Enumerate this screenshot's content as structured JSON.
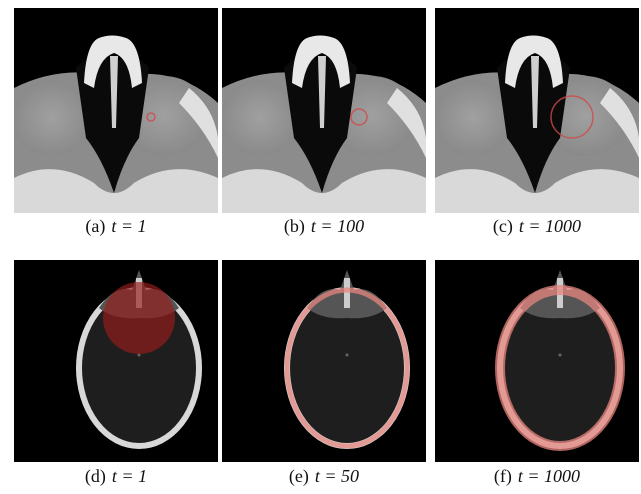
{
  "panels": [
    {
      "label": "(a)",
      "caption": "t = 1"
    },
    {
      "label": "(b)",
      "caption": "t = 100"
    },
    {
      "label": "(c)",
      "caption": "t = 1000"
    },
    {
      "label": "(d)",
      "caption": "t = 1"
    },
    {
      "label": "(e)",
      "caption": "t = 50"
    },
    {
      "label": "(f)",
      "caption": "t = 1000"
    }
  ]
}
